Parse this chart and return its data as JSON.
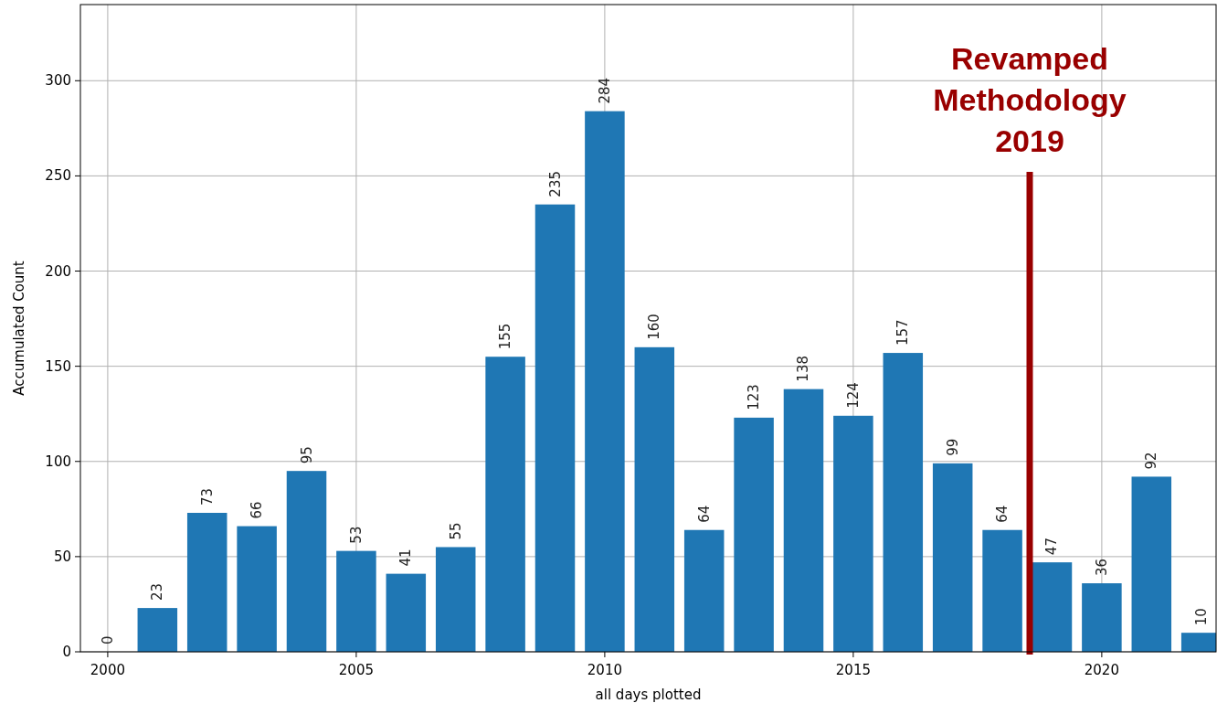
{
  "chart_data": {
    "type": "bar",
    "xlabel": "all days plotted",
    "ylabel": "Accumulated Count",
    "x": [
      2000,
      2001,
      2002,
      2003,
      2004,
      2005,
      2006,
      2007,
      2008,
      2009,
      2010,
      2011,
      2012,
      2013,
      2014,
      2015,
      2016,
      2017,
      2018,
      2019,
      2020,
      2021,
      2022
    ],
    "values": [
      0,
      23,
      73,
      66,
      95,
      53,
      41,
      55,
      155,
      235,
      284,
      160,
      64,
      123,
      138,
      124,
      157,
      99,
      64,
      47,
      36,
      92,
      10
    ],
    "color": "#1f77b4",
    "xlim": [
      1999.45,
      2022.3
    ],
    "xticks": [
      2000,
      2005,
      2010,
      2015,
      2020
    ],
    "ylim": [
      0,
      340
    ],
    "yticks": [
      0,
      50,
      100,
      150,
      200,
      250,
      300
    ],
    "grid": true,
    "data_labels": true,
    "ref_lines": [
      {
        "axis": "x",
        "value": 2018.55,
        "label": "Revamped\nMethodology\n2019",
        "color": "#990000"
      }
    ]
  }
}
